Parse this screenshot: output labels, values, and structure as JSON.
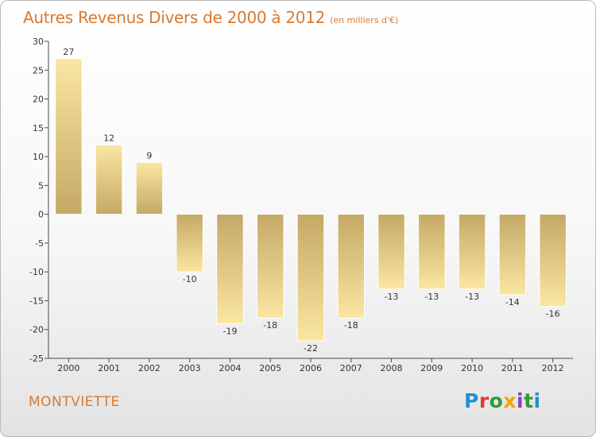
{
  "title": {
    "main": "Autres Revenus Divers de 2000 à 2012",
    "unit": "(en milliers d'€)"
  },
  "commune": "MONTVIETTE",
  "logo": {
    "letters": [
      "P",
      "r",
      "o",
      "x",
      "i",
      "t",
      "i"
    ],
    "colors": [
      "#1f8fd6",
      "#e23c2c",
      "#2f9a3c",
      "#f0a500",
      "#8a3fb5",
      "#2f9a3c",
      "#1f8fd6"
    ]
  },
  "chart_data": {
    "type": "bar",
    "categories": [
      "2000",
      "2001",
      "2002",
      "2003",
      "2004",
      "2005",
      "2006",
      "2007",
      "2008",
      "2009",
      "2010",
      "2011",
      "2012"
    ],
    "values": [
      27,
      12,
      9,
      -10,
      -19,
      -18,
      -22,
      -18,
      -13,
      -13,
      -13,
      -14,
      -16
    ],
    "value_labels": [
      "27",
      "12",
      "9",
      "-10",
      "-19",
      "-18",
      "-22",
      "-18",
      "-13",
      "-13",
      "-13",
      "-14",
      "-16"
    ],
    "ylim": [
      -25,
      30
    ],
    "yticks": [
      -25,
      -20,
      -15,
      -10,
      -5,
      0,
      5,
      10,
      15,
      20,
      25,
      30
    ],
    "grid": false,
    "colors": {
      "bar_light": "#fae6a2",
      "bar_dark": "#c4a965",
      "axis": "#4a4a4a",
      "text": "#333333",
      "accent": "#d77a33"
    }
  }
}
